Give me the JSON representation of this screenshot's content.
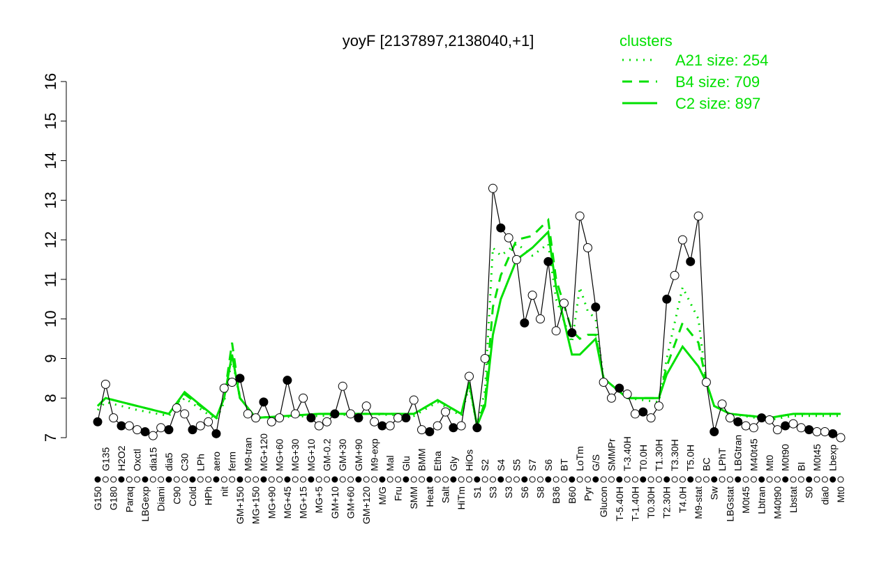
{
  "chart_data": {
    "type": "line",
    "title": "yoyF [2137897,2138040,+1]",
    "xlabel": "",
    "ylabel": "",
    "ylim": [
      7,
      16
    ],
    "yticks": [
      7,
      8,
      9,
      10,
      11,
      12,
      13,
      14,
      15,
      16
    ],
    "grid": false,
    "legend": {
      "title": "clusters",
      "placement": "top-right",
      "color": "#00e000",
      "entries": [
        {
          "label": "A21 size: 254",
          "style": "dotted"
        },
        {
          "label": "B4 size: 709",
          "style": "dashed"
        },
        {
          "label": "C2 size: 897",
          "style": "solid"
        }
      ]
    },
    "categories": [
      "G150",
      "G135",
      "G180",
      "H2O2",
      "Paraq",
      "Oxctl",
      "LBGexp",
      "dia15",
      "Diami",
      "dia5",
      "C90",
      "C30",
      "Cold",
      "LPh",
      "HPh",
      "aero",
      "nit",
      "ferm",
      "GM+150",
      "M9-tran",
      "MG+150",
      "MG+120",
      "MG+90",
      "MG+60",
      "MG+45",
      "MG+30",
      "MG+15",
      "MG+10",
      "MG+5",
      "GM-0.2",
      "GM+10",
      "GM+30",
      "GM+60",
      "GM+90",
      "GM+120",
      "M9-exp",
      "M/G",
      "Mal",
      "Fru",
      "Glu",
      "SMM",
      "BMM",
      "Heat",
      "Etha",
      "Salt",
      "Gly",
      "HiTm",
      "HiOs",
      "S1",
      "S2",
      "S3",
      "S4",
      "S3",
      "S5",
      "S6",
      "S7",
      "S8",
      "S6",
      "B36",
      "BT",
      "B60",
      "LoTm",
      "Pyr",
      "G/S",
      "Glucon",
      "SMMPr",
      "T-5.40H",
      "T-3.40H",
      "T-1.40H",
      "T0.0H",
      "T0.30H",
      "T1.30H",
      "T2.30H",
      "T3.30H",
      "T4.0H",
      "T5.0H",
      "M9-stat",
      "BC",
      "Sw",
      "LPhT",
      "LBGstat",
      "LBGtran",
      "M0t45",
      "M40t45",
      "Lbtran",
      "Mt0",
      "M40t90",
      "M0t90",
      "Lbstat",
      "BI",
      "S0",
      "M0t45",
      "dia0",
      "Lbexp",
      "Mt0"
    ],
    "values": [
      7.4,
      8.35,
      7.5,
      7.3,
      7.3,
      7.2,
      7.15,
      7.05,
      7.25,
      7.2,
      7.75,
      7.6,
      7.2,
      7.3,
      7.4,
      7.1,
      8.25,
      8.4,
      8.5,
      7.6,
      7.5,
      7.9,
      7.4,
      7.5,
      8.45,
      7.6,
      8.0,
      7.5,
      7.3,
      7.4,
      7.6,
      8.3,
      7.6,
      7.5,
      7.8,
      7.4,
      7.3,
      7.3,
      7.5,
      7.5,
      7.95,
      7.2,
      7.15,
      7.3,
      7.65,
      7.25,
      7.3,
      8.55,
      7.25,
      9.0,
      13.3,
      12.3,
      12.05,
      11.5,
      9.9,
      10.6,
      10.0,
      11.45,
      9.7,
      10.4,
      9.65,
      12.6,
      11.8,
      10.3,
      8.4,
      8.0,
      8.25,
      8.1,
      7.6,
      7.65,
      7.5,
      7.8,
      10.5,
      11.1,
      12.0,
      11.45,
      12.6,
      8.4,
      7.15,
      7.85,
      7.5,
      7.4,
      7.3,
      7.25,
      7.5,
      7.45,
      7.2,
      7.3,
      7.35,
      7.25,
      7.2,
      7.15,
      7.15,
      7.1,
      7.0
    ],
    "series": [
      {
        "name": "A21 size: 254",
        "style": "dotted",
        "points": [
          [
            0,
            7.7
          ],
          [
            1,
            7.9
          ],
          [
            5,
            7.7
          ],
          [
            9,
            7.55
          ],
          [
            11,
            8.0
          ],
          [
            15,
            7.45
          ],
          [
            16,
            7.9
          ],
          [
            17,
            9.0
          ],
          [
            18,
            8.0
          ],
          [
            20,
            7.5
          ],
          [
            28,
            7.55
          ],
          [
            34,
            7.6
          ],
          [
            40,
            7.55
          ],
          [
            43,
            7.9
          ],
          [
            46,
            7.55
          ],
          [
            47,
            8.3
          ],
          [
            48,
            7.3
          ],
          [
            49,
            8.2
          ],
          [
            50,
            11.8
          ],
          [
            51,
            11.6
          ],
          [
            53,
            11.9
          ],
          [
            55,
            11.6
          ],
          [
            57,
            11.9
          ],
          [
            58,
            10.5
          ],
          [
            60,
            9.4
          ],
          [
            61,
            10.8
          ],
          [
            62,
            10.2
          ],
          [
            63,
            10.0
          ],
          [
            64,
            8.5
          ],
          [
            67,
            8.0
          ],
          [
            71,
            7.9
          ],
          [
            72,
            9.0
          ],
          [
            74,
            10.8
          ],
          [
            75,
            10.4
          ],
          [
            76,
            10.0
          ],
          [
            77,
            8.4
          ],
          [
            78,
            7.8
          ],
          [
            80,
            7.6
          ],
          [
            85,
            7.45
          ],
          [
            88,
            7.55
          ],
          [
            94,
            7.55
          ]
        ]
      },
      {
        "name": "B4 size: 709",
        "style": "dashed",
        "points": [
          [
            0,
            7.8
          ],
          [
            1,
            8.0
          ],
          [
            5,
            7.8
          ],
          [
            9,
            7.6
          ],
          [
            11,
            8.1
          ],
          [
            15,
            7.5
          ],
          [
            16,
            8.0
          ],
          [
            17,
            9.4
          ],
          [
            18,
            8.0
          ],
          [
            20,
            7.5
          ],
          [
            28,
            7.6
          ],
          [
            34,
            7.6
          ],
          [
            40,
            7.6
          ],
          [
            43,
            7.95
          ],
          [
            46,
            7.6
          ],
          [
            47,
            8.4
          ],
          [
            48,
            7.3
          ],
          [
            49,
            7.9
          ],
          [
            50,
            10.3
          ],
          [
            51,
            11.1
          ],
          [
            53,
            12.0
          ],
          [
            55,
            12.1
          ],
          [
            57,
            12.5
          ],
          [
            58,
            11.0
          ],
          [
            60,
            9.7
          ],
          [
            61,
            9.5
          ],
          [
            62,
            9.6
          ],
          [
            63,
            9.6
          ],
          [
            64,
            8.5
          ],
          [
            67,
            8.0
          ],
          [
            71,
            8.0
          ],
          [
            72,
            8.8
          ],
          [
            74,
            9.9
          ],
          [
            76,
            9.4
          ],
          [
            77,
            8.4
          ],
          [
            78,
            7.8
          ],
          [
            80,
            7.6
          ],
          [
            85,
            7.5
          ],
          [
            88,
            7.6
          ],
          [
            94,
            7.6
          ]
        ]
      },
      {
        "name": "C2 size: 897",
        "style": "solid",
        "points": [
          [
            0,
            7.8
          ],
          [
            1,
            8.0
          ],
          [
            5,
            7.8
          ],
          [
            9,
            7.6
          ],
          [
            11,
            8.15
          ],
          [
            15,
            7.5
          ],
          [
            16,
            8.0
          ],
          [
            17,
            9.1
          ],
          [
            18,
            8.0
          ],
          [
            20,
            7.5
          ],
          [
            28,
            7.6
          ],
          [
            34,
            7.6
          ],
          [
            40,
            7.6
          ],
          [
            43,
            7.95
          ],
          [
            46,
            7.6
          ],
          [
            47,
            8.4
          ],
          [
            48,
            7.3
          ],
          [
            49,
            7.8
          ],
          [
            50,
            9.6
          ],
          [
            51,
            10.5
          ],
          [
            53,
            11.5
          ],
          [
            55,
            11.8
          ],
          [
            57,
            12.2
          ],
          [
            58,
            10.8
          ],
          [
            60,
            9.1
          ],
          [
            61,
            9.1
          ],
          [
            62,
            9.3
          ],
          [
            63,
            9.5
          ],
          [
            64,
            8.5
          ],
          [
            67,
            8.0
          ],
          [
            71,
            8.0
          ],
          [
            72,
            8.6
          ],
          [
            74,
            9.3
          ],
          [
            76,
            8.8
          ],
          [
            77,
            8.4
          ],
          [
            78,
            7.8
          ],
          [
            80,
            7.6
          ],
          [
            85,
            7.5
          ],
          [
            88,
            7.6
          ],
          [
            94,
            7.6
          ]
        ]
      }
    ]
  }
}
